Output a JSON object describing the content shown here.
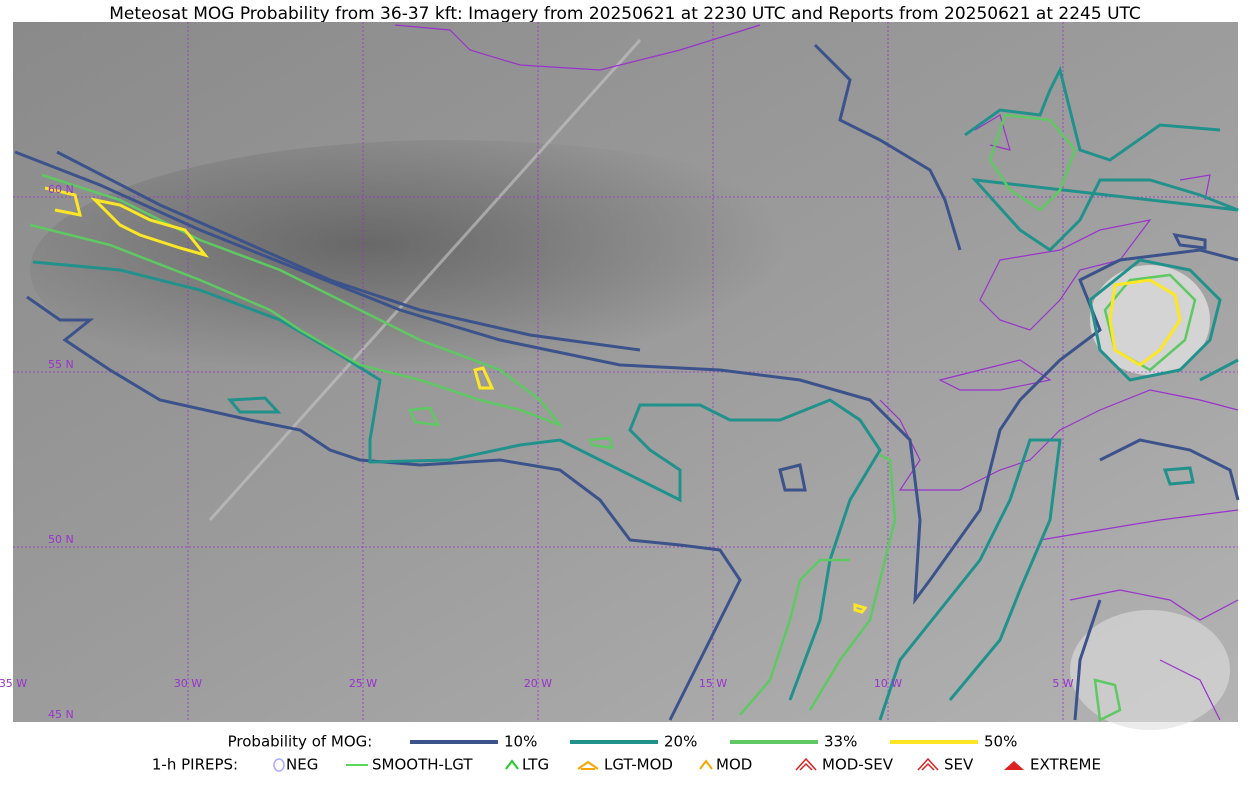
{
  "title": "Meteosat MOG Probability from 36-37 kft: Imagery from 20250621 at 2230 UTC and Reports from 20250621 at 2245 UTC",
  "map": {
    "lat_labels": [
      "60 N",
      "55 N",
      "50 N",
      "45 N"
    ],
    "lon_labels": [
      "35 W",
      "30 W",
      "25 W",
      "20 W",
      "15 W",
      "10 W",
      "5 W"
    ]
  },
  "legend": {
    "probability_label": "Probability of MOG:",
    "probability_items": [
      {
        "label": "10%",
        "color": "#3b528b"
      },
      {
        "label": "20%",
        "color": "#21918c"
      },
      {
        "label": "33%",
        "color": "#5ec962"
      },
      {
        "label": "50%",
        "color": "#fde725"
      }
    ],
    "pireps_label": "1-h PIREPS:",
    "pireps_items": [
      {
        "label": "NEG",
        "color": "#aaaaff"
      },
      {
        "label": "SMOOTH-LGT",
        "color": "#22cc22"
      },
      {
        "label": "LTG",
        "color": "#22cc22"
      },
      {
        "label": "LGT-MOD",
        "color": "#f5a500"
      },
      {
        "label": "MOD",
        "color": "#f5a500"
      },
      {
        "label": "MOD-SEV",
        "color": "#dd2222"
      },
      {
        "label": "SEV",
        "color": "#dd2222"
      },
      {
        "label": "EXTREME",
        "color": "#dd2222"
      }
    ]
  }
}
